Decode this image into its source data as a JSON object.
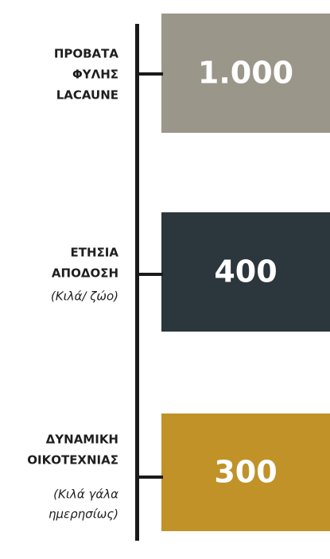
{
  "items": [
    {
      "label": [
        "ΠΡΟΒΑΤΑ",
        "ΦΥΛΗΣ",
        "LACAUNE"
      ],
      "value": "1.000"
    },
    {
      "label": [
        "ΕΤΗΣΙΑ",
        "ΑΠΟΔΟΣΗ"
      ],
      "note": [
        "(Κιλά/ ζώο)"
      ],
      "value": "400"
    },
    {
      "label": [
        "ΔΥΝΑΜΙΚΗ",
        "ΟΙΚΟΤΕΧΝΙΑΣ"
      ],
      "note": [
        "(Κιλά γάλα",
        "ημερησίως)"
      ],
      "value": "300"
    }
  ]
}
